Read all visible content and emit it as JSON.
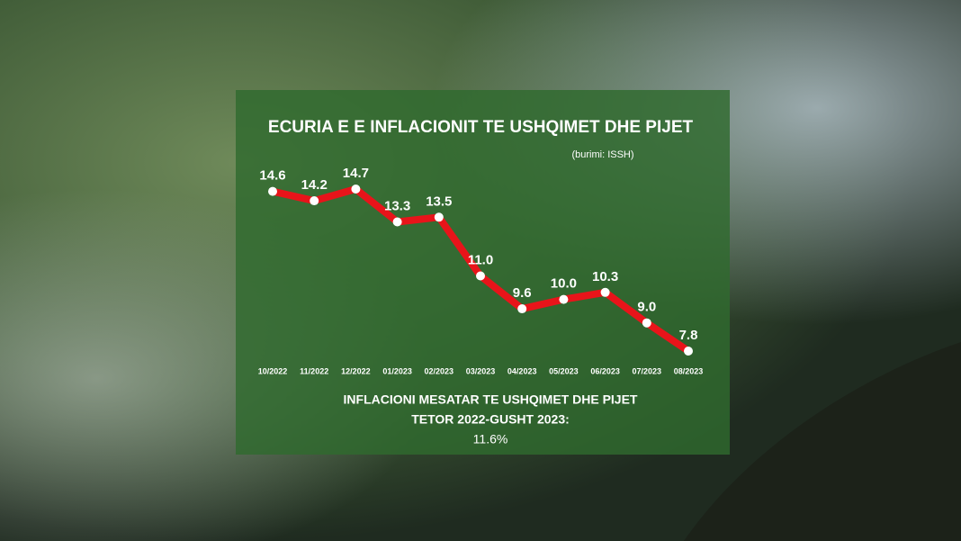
{
  "chart_data": {
    "type": "line",
    "title": "ECURIA E E INFLACIONIT TE USHQIMET DHE PIJET",
    "subtitle": "(burimi: ISSH)",
    "categories": [
      "10/2022",
      "11/2022",
      "12/2022",
      "01/2023",
      "02/2023",
      "03/2023",
      "04/2023",
      "05/2023",
      "06/2023",
      "07/2023",
      "08/2023"
    ],
    "values": [
      14.6,
      14.2,
      14.7,
      13.3,
      13.5,
      11.0,
      9.6,
      10.0,
      10.3,
      9.0,
      7.8
    ],
    "value_labels": [
      "14.6",
      "14.2",
      "14.7",
      "13.3",
      "13.5",
      "11.0",
      "9.6",
      "10.0",
      "10.3",
      "9.0",
      "7.8"
    ],
    "color": "#e8141a",
    "annotations": [
      "INFLACIONI MESATAR TE USHQIMET DHE PIJET",
      "TETOR 2022-GUSHT 2023:",
      "11.6%"
    ]
  }
}
